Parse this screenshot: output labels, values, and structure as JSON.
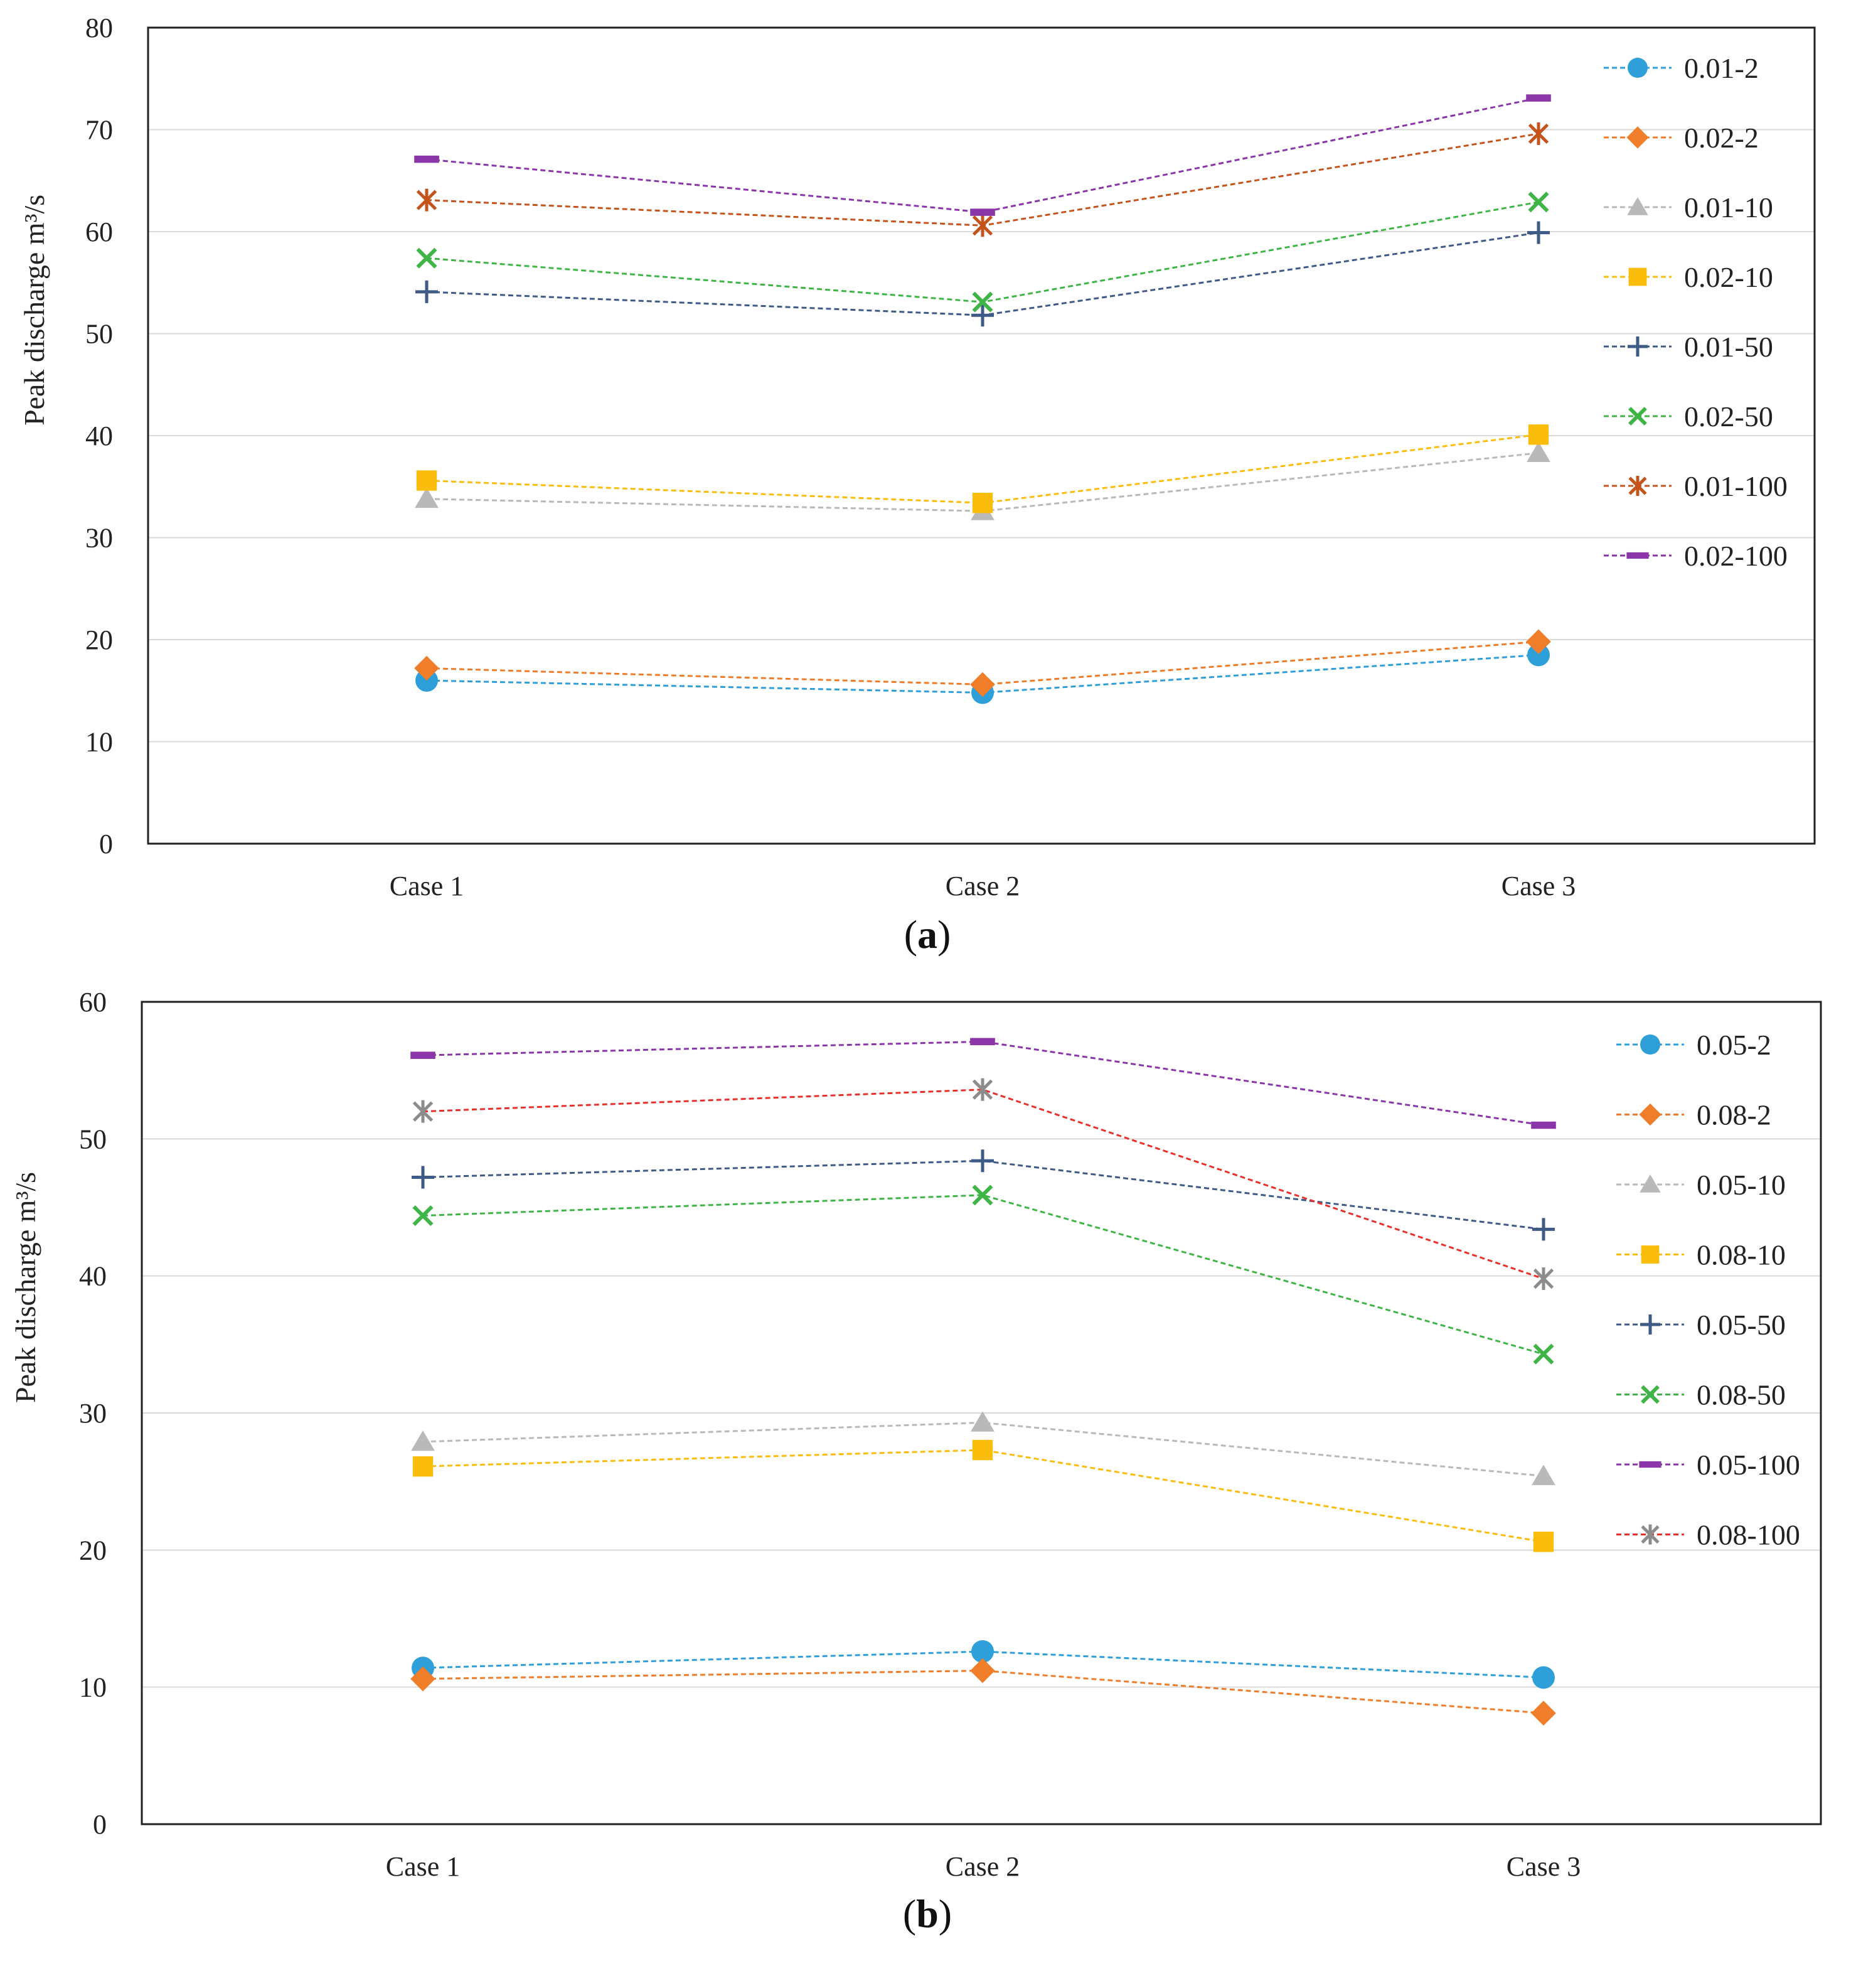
{
  "chart_data": [
    {
      "type": "line",
      "panel_label": "a",
      "ylabel": "Peak discharge  m³/s",
      "ylim": [
        0,
        80
      ],
      "yticks": [
        0,
        10,
        20,
        30,
        40,
        50,
        60,
        70,
        80
      ],
      "categories": [
        "Case 1",
        "Case 2",
        "Case 3"
      ],
      "grid": true,
      "legend_position": "right",
      "series": [
        {
          "name": "0.01-2",
          "color": "#2e9fd8",
          "marker": "circle",
          "values": [
            16.0,
            14.8,
            18.5
          ]
        },
        {
          "name": "0.02-2",
          "color": "#f07d2a",
          "marker": "diamond",
          "values": [
            17.2,
            15.6,
            19.8
          ]
        },
        {
          "name": "0.01-10",
          "color": "#b9b9b9",
          "marker": "triangle",
          "values": [
            33.8,
            32.6,
            38.3
          ]
        },
        {
          "name": "0.02-10",
          "color": "#fbbd0c",
          "marker": "square",
          "values": [
            35.6,
            33.4,
            40.1
          ]
        },
        {
          "name": "0.01-50",
          "color": "#3e5a86",
          "marker": "plus",
          "values": [
            54.1,
            51.8,
            59.9
          ]
        },
        {
          "name": "0.02-50",
          "color": "#3fb548",
          "marker": "x",
          "values": [
            57.4,
            53.1,
            62.9
          ]
        },
        {
          "name": "0.01-100",
          "color": "#c4541c",
          "marker": "star",
          "values": [
            63.1,
            60.6,
            69.6
          ]
        },
        {
          "name": "0.02-100",
          "color": "#8a36a8",
          "marker": "dash",
          "values": [
            67.1,
            61.9,
            73.1
          ]
        }
      ]
    },
    {
      "type": "line",
      "panel_label": "b",
      "ylabel": "Peak discharge  m³/s",
      "ylim": [
        0,
        60
      ],
      "yticks": [
        0,
        10,
        20,
        30,
        40,
        50,
        60
      ],
      "categories": [
        "Case 1",
        "Case 2",
        "Case 3"
      ],
      "grid": true,
      "legend_position": "right",
      "series": [
        {
          "name": "0.05-2",
          "color": "#2e9fd8",
          "marker": "circle",
          "values": [
            11.4,
            12.6,
            10.7
          ]
        },
        {
          "name": "0.08-2",
          "color": "#f07d2a",
          "marker": "diamond",
          "values": [
            10.6,
            11.2,
            8.1
          ]
        },
        {
          "name": "0.05-10",
          "color": "#b9b9b9",
          "marker": "triangle",
          "values": [
            27.9,
            29.3,
            25.4
          ]
        },
        {
          "name": "0.08-10",
          "color": "#fbbd0c",
          "marker": "square",
          "values": [
            26.1,
            27.3,
            20.6
          ]
        },
        {
          "name": "0.05-50",
          "color": "#3e5a86",
          "marker": "plus",
          "values": [
            47.2,
            48.4,
            43.4
          ]
        },
        {
          "name": "0.08-50",
          "color": "#3fb548",
          "marker": "x",
          "values": [
            44.4,
            45.9,
            34.3
          ]
        },
        {
          "name": "0.05-100",
          "color": "#8a36a8",
          "marker": "dash",
          "values": [
            56.1,
            57.1,
            51.0
          ]
        },
        {
          "name": "0.08-100",
          "color": "#e8312b",
          "marker": "star",
          "values": [
            52.0,
            53.6,
            39.8
          ],
          "marker_color": "#8c8c8c"
        }
      ]
    }
  ]
}
